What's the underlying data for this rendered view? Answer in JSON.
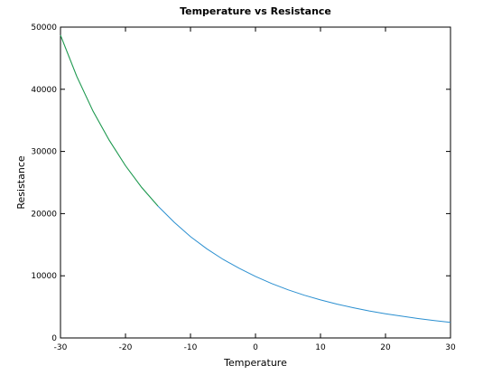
{
  "chart_data": {
    "type": "line",
    "title": "Temperature vs Resistance",
    "xlabel": "Temperature",
    "ylabel": "Resistance",
    "xlim": [
      -30,
      30
    ],
    "ylim": [
      0,
      50000
    ],
    "xticks": [
      -30,
      -20,
      -10,
      0,
      10,
      20,
      30
    ],
    "yticks": [
      0,
      10000,
      20000,
      30000,
      40000,
      50000
    ],
    "grid": false,
    "series": [
      {
        "color": "#2a8fd0",
        "highlight_color": "#22a022",
        "x": [
          -30,
          -27.5,
          -25,
          -22.5,
          -20,
          -17.5,
          -15,
          -12.5,
          -10,
          -7.5,
          -5,
          -2.5,
          0,
          2.5,
          5,
          7.5,
          10,
          12.5,
          15,
          17.5,
          20,
          22.5,
          25,
          27.5,
          30
        ],
        "y": [
          48700,
          42100,
          36500,
          31800,
          27700,
          24200,
          21200,
          18600,
          16300,
          14350,
          12650,
          11200,
          9900,
          8750,
          7750,
          6880,
          6120,
          5450,
          4870,
          4350,
          3900,
          3500,
          3120,
          2800,
          2500
        ]
      }
    ]
  }
}
